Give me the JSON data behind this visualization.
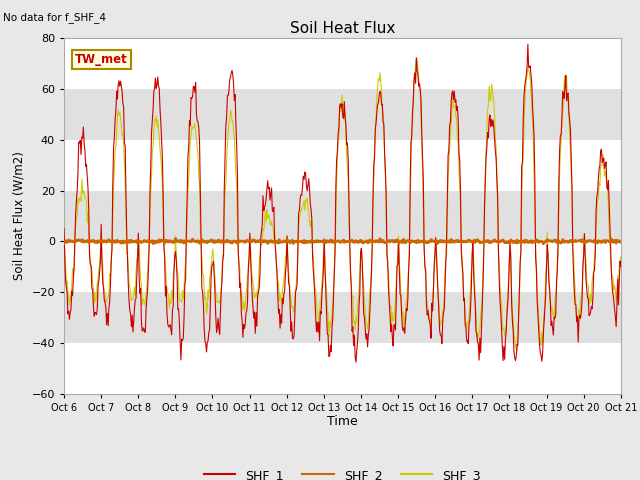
{
  "title": "Soil Heat Flux",
  "ylabel": "Soil Heat Flux (W/m2)",
  "xlabel": "Time",
  "note": "No data for f_SHF_4",
  "station_label": "TW_met",
  "ylim": [
    -60,
    80
  ],
  "yticks": [
    -60,
    -40,
    -20,
    0,
    20,
    40,
    60,
    80
  ],
  "colors": {
    "SHF_1": "#cc0000",
    "SHF_2": "#cc6600",
    "SHF_3": "#cccc00"
  },
  "figsize": [
    6.4,
    4.8
  ],
  "dpi": 100,
  "background_color": "#e8e8e8",
  "plot_bg_color": "#f0f0f0",
  "band_colors": [
    "#ffffff",
    "#e0e0e0"
  ],
  "linewidth_data": 0.8,
  "linewidth_zero": 2.0
}
